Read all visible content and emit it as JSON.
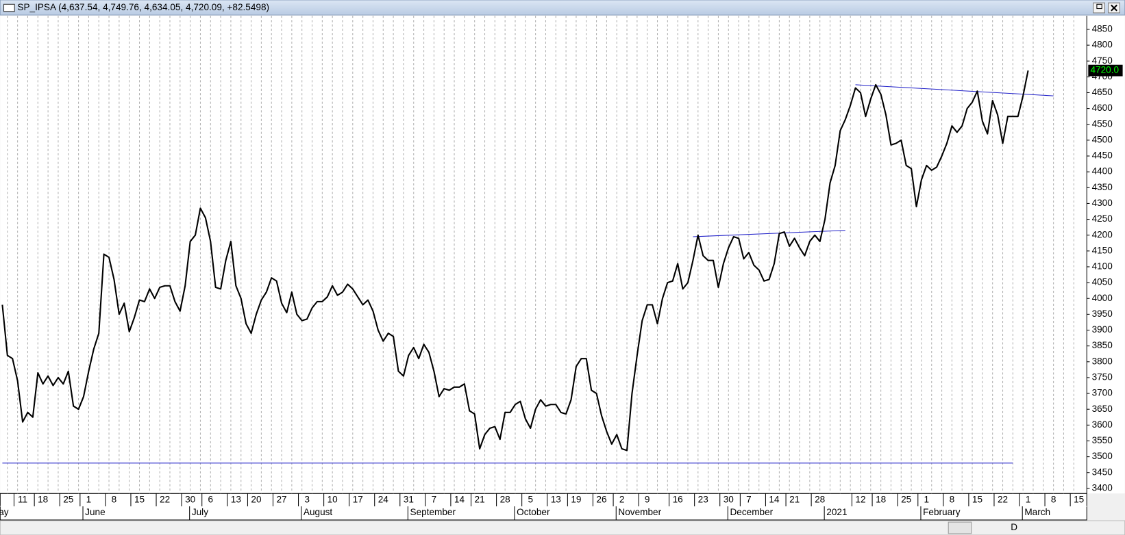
{
  "chart_data": {
    "type": "line",
    "title": "SP_IPSA (4,637.54, 4,749.76, 4,634.05, 4,720.09, +82.5498)",
    "last_price_label": "4720.0",
    "period_button": "D",
    "color": "#000000",
    "trend_color": "#1f1fc8",
    "ylim": [
      3384,
      4893
    ],
    "yticks": [
      3400,
      3450,
      3500,
      3550,
      3600,
      3650,
      3700,
      3750,
      3800,
      3850,
      3900,
      3950,
      4000,
      4050,
      4100,
      4150,
      4200,
      4250,
      4300,
      4350,
      4400,
      4450,
      4500,
      4550,
      4600,
      4650,
      4700,
      4750,
      4800,
      4850
    ],
    "categories": [
      null,
      null,
      null,
      null,
      "11",
      null,
      null,
      null,
      "18",
      null,
      null,
      null,
      null,
      "25",
      null,
      null,
      null,
      "1",
      null,
      null,
      null,
      null,
      "8",
      null,
      null,
      null,
      null,
      "15",
      null,
      null,
      null,
      null,
      "22",
      null,
      null,
      null,
      null,
      "30",
      null,
      null,
      null,
      "6",
      null,
      null,
      null,
      null,
      "13",
      null,
      null,
      null,
      "20",
      null,
      null,
      null,
      null,
      "27",
      null,
      null,
      null,
      null,
      "3",
      null,
      null,
      null,
      null,
      "10",
      null,
      null,
      null,
      null,
      "17",
      null,
      null,
      null,
      null,
      "24",
      null,
      null,
      null,
      null,
      "31",
      null,
      null,
      null,
      null,
      "7",
      null,
      null,
      null,
      null,
      "14",
      null,
      null,
      null,
      "21",
      null,
      null,
      null,
      null,
      "28",
      null,
      null,
      null,
      null,
      "5",
      null,
      null,
      null,
      null,
      "13",
      null,
      null,
      null,
      "19",
      null,
      null,
      null,
      null,
      "26",
      null,
      null,
      null,
      "2",
      null,
      null,
      null,
      null,
      "9",
      null,
      null,
      null,
      null,
      null,
      "16",
      null,
      null,
      null,
      null,
      "23",
      null,
      null,
      null,
      null,
      "30",
      null,
      null,
      null,
      "7",
      null,
      null,
      null,
      null,
      "14",
      null,
      null,
      null,
      "21",
      null,
      null,
      null,
      null,
      "28",
      null,
      null,
      null,
      null,
      null,
      null,
      null,
      "12",
      null,
      null,
      null,
      "18",
      null,
      null,
      null,
      null,
      "25",
      null,
      null,
      null,
      "1",
      null,
      null,
      null,
      null,
      "8",
      null,
      null,
      null,
      null,
      "15",
      null,
      null,
      null,
      null,
      "22",
      null,
      null,
      null,
      null,
      "1",
      null,
      null,
      null,
      null,
      "8",
      null,
      null,
      null,
      null,
      "15"
    ],
    "month_categories": [
      "ay",
      null,
      null,
      null,
      null,
      null,
      null,
      null,
      null,
      null,
      null,
      null,
      null,
      null,
      null,
      null,
      null,
      "June",
      null,
      null,
      null,
      null,
      null,
      null,
      null,
      null,
      null,
      null,
      null,
      null,
      null,
      null,
      null,
      null,
      null,
      null,
      null,
      null,
      "July",
      null,
      null,
      null,
      null,
      null,
      null,
      null,
      null,
      null,
      null,
      null,
      null,
      null,
      null,
      null,
      null,
      null,
      null,
      null,
      null,
      null,
      "August",
      null,
      null,
      null,
      null,
      null,
      null,
      null,
      null,
      null,
      null,
      null,
      null,
      null,
      null,
      null,
      null,
      null,
      null,
      null,
      null,
      "September",
      null,
      null,
      null,
      null,
      null,
      null,
      null,
      null,
      null,
      null,
      null,
      null,
      null,
      null,
      null,
      null,
      null,
      null,
      null,
      null,
      "October",
      null,
      null,
      null,
      null,
      null,
      null,
      null,
      null,
      null,
      null,
      null,
      null,
      null,
      null,
      null,
      null,
      null,
      null,
      null,
      "November",
      null,
      null,
      null,
      null,
      null,
      null,
      null,
      null,
      null,
      null,
      null,
      null,
      null,
      null,
      null,
      null,
      null,
      null,
      null,
      null,
      null,
      "December",
      null,
      null,
      null,
      null,
      null,
      null,
      null,
      null,
      null,
      null,
      null,
      null,
      null,
      null,
      null,
      null,
      null,
      null,
      "2021",
      null,
      null,
      null,
      null,
      null,
      null,
      null,
      null,
      null,
      null,
      null,
      null,
      null,
      null,
      null,
      null,
      null,
      null,
      "February",
      null,
      null,
      null,
      null,
      null,
      null,
      null,
      null,
      null,
      null,
      null,
      null,
      null,
      null,
      null,
      null,
      null,
      null,
      null,
      "March",
      null,
      null,
      null,
      null,
      null,
      null,
      null,
      null,
      null,
      null
    ],
    "values": [
      3980,
      3820,
      3810,
      3740,
      3610,
      3640,
      3625,
      3765,
      3730,
      3755,
      3725,
      3750,
      3730,
      3770,
      3660,
      3650,
      3690,
      3770,
      3840,
      3890,
      4140,
      4130,
      4060,
      3950,
      3985,
      3895,
      3940,
      3995,
      3990,
      4030,
      4000,
      4035,
      4040,
      4040,
      3990,
      3960,
      4040,
      4180,
      4200,
      4285,
      4255,
      4180,
      4035,
      4030,
      4120,
      4180,
      4040,
      4000,
      3920,
      3890,
      3950,
      3995,
      4020,
      4065,
      4055,
      3985,
      3955,
      4020,
      3950,
      3930,
      3935,
      3970,
      3990,
      3990,
      4005,
      4040,
      4010,
      4020,
      4045,
      4030,
      4005,
      3980,
      3995,
      3960,
      3900,
      3865,
      3890,
      3880,
      3770,
      3755,
      3820,
      3845,
      3810,
      3855,
      3830,
      3770,
      3690,
      3715,
      3710,
      3720,
      3720,
      3730,
      3645,
      3635,
      3525,
      3570,
      3590,
      3595,
      3555,
      3640,
      3640,
      3665,
      3675,
      3620,
      3590,
      3650,
      3680,
      3660,
      3665,
      3665,
      3640,
      3635,
      3680,
      3785,
      3810,
      3810,
      3710,
      3700,
      3630,
      3580,
      3540,
      3570,
      3525,
      3520,
      3700,
      3820,
      3930,
      3980,
      3980,
      3920,
      4000,
      4050,
      4055,
      4110,
      4030,
      4050,
      4120,
      4200,
      4135,
      4120,
      4120,
      4035,
      4110,
      4160,
      4195,
      4190,
      4125,
      4145,
      4105,
      4090,
      4055,
      4060,
      4110,
      4205,
      4210,
      4165,
      4190,
      4160,
      4135,
      4180,
      4200,
      4180,
      4250,
      4365,
      4420,
      4530,
      4565,
      4610,
      4665,
      4650,
      4575,
      4630,
      4675,
      4645,
      4580,
      4485,
      4490,
      4500,
      4420,
      4410,
      4290,
      4375,
      4420,
      4405,
      4415,
      4450,
      4490,
      4545,
      4525,
      4545,
      4600,
      4620,
      4655,
      4560,
      4520,
      4625,
      4580,
      4490,
      4575,
      4575,
      4575,
      4640,
      4720,
      null,
      null,
      null,
      null,
      null,
      null,
      null,
      null,
      null,
      null
    ],
    "trendlines": [
      {
        "x": [
          0,
          199
        ],
        "y": [
          3480,
          3480
        ]
      },
      {
        "x": [
          136,
          166
        ],
        "y": [
          4195,
          4215
        ]
      },
      {
        "x": [
          168,
          207
        ],
        "y": [
          4675,
          4640
        ]
      }
    ]
  }
}
